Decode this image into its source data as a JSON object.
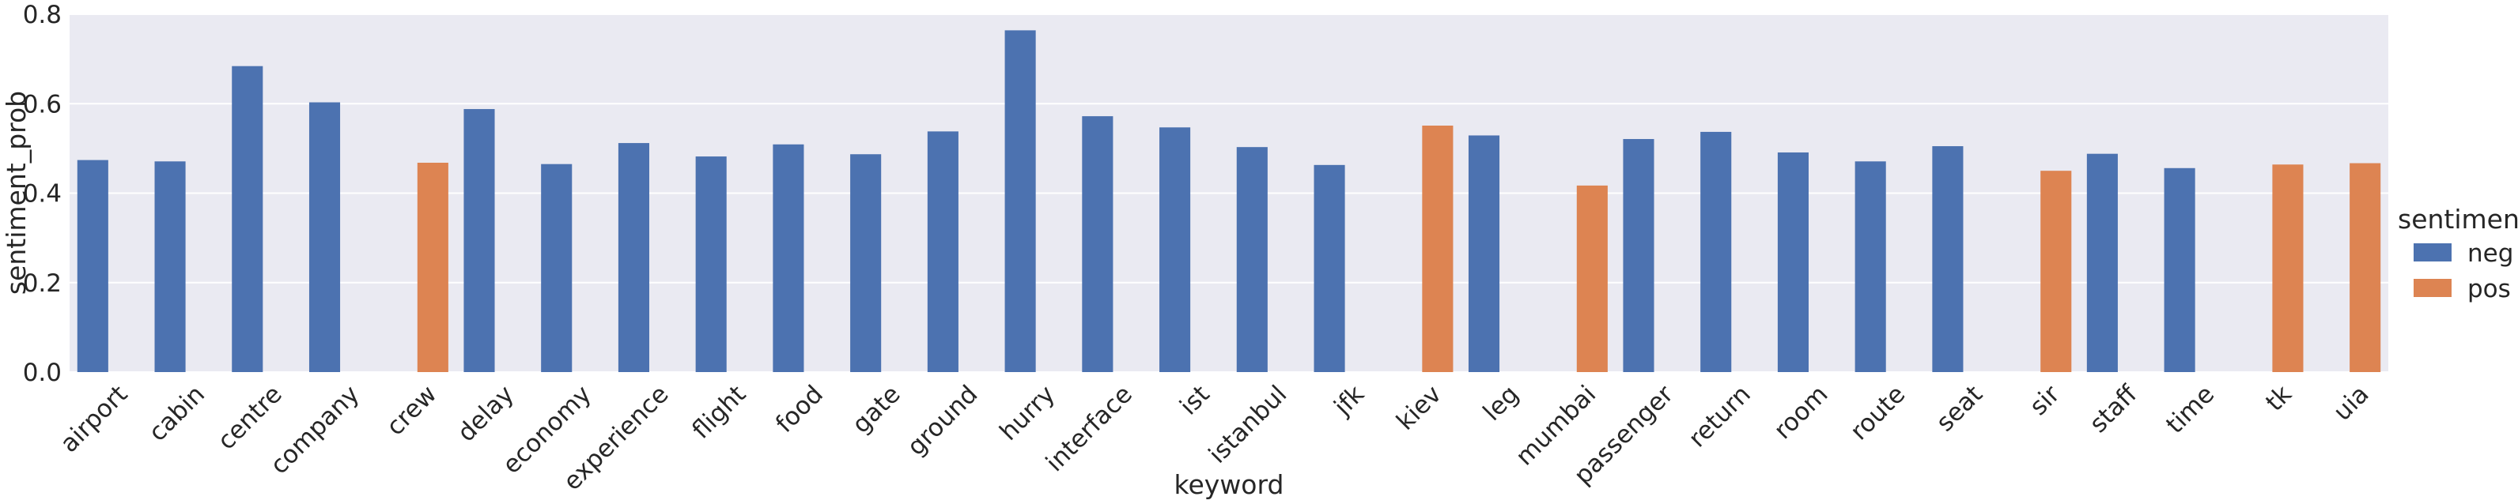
{
  "chart_data": {
    "type": "bar",
    "title": "",
    "xlabel": "keyword",
    "ylabel": "sentiment_prob",
    "ylim": [
      0,
      0.8
    ],
    "yticks": [
      "0.0",
      "0.2",
      "0.4",
      "0.6",
      "0.8"
    ],
    "grid": true,
    "legend": {
      "title": "sentiment",
      "placement": "right"
    },
    "categories": [
      "airport",
      "cabin",
      "centre",
      "company",
      "crew",
      "delay",
      "economy",
      "experience",
      "flight",
      "food",
      "gate",
      "ground",
      "hurry",
      "interface",
      "ist",
      "istanbul",
      "jfk",
      "kiev",
      "leg",
      "mumbai",
      "passenger",
      "return",
      "room",
      "route",
      "seat",
      "sir",
      "staff",
      "time",
      "tk",
      "uia"
    ],
    "series": [
      {
        "name": "neg",
        "color": "#4c72b0",
        "values": [
          0.474,
          0.471,
          0.684,
          0.603,
          null,
          0.588,
          0.465,
          0.512,
          0.482,
          0.509,
          0.487,
          0.538,
          0.764,
          0.572,
          0.547,
          0.503,
          0.463,
          null,
          0.529,
          null,
          0.521,
          0.537,
          0.491,
          0.471,
          0.505,
          null,
          0.488,
          0.456,
          null,
          null
        ]
      },
      {
        "name": "pos",
        "color": "#dd8452",
        "values": [
          null,
          null,
          null,
          null,
          0.468,
          null,
          null,
          null,
          null,
          null,
          null,
          null,
          null,
          null,
          null,
          null,
          null,
          0.551,
          null,
          0.417,
          null,
          null,
          null,
          null,
          null,
          0.45,
          null,
          null,
          0.464,
          0.467
        ]
      }
    ]
  }
}
